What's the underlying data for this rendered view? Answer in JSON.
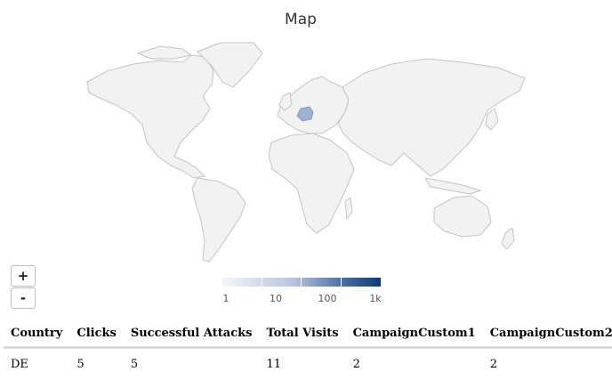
{
  "map": {
    "title": "Map",
    "highlighted_country": "DE",
    "land_color": "#f2f2f2",
    "border_color": "#c4c4c4",
    "highlight_color": "#9fb0d4",
    "zoom_in_label": "+",
    "zoom_out_label": "-"
  },
  "legend": {
    "scale": "log",
    "labels": [
      "1",
      "10",
      "100",
      "1k"
    ],
    "color_low": "#f4f5fb",
    "color_high": "#0e3a78"
  },
  "table": {
    "headers": [
      "Country",
      "Clicks",
      "Successful Attacks",
      "Total Visits",
      "CampaignCustom1",
      "CampaignCustom2"
    ],
    "rows": [
      [
        "DE",
        "5",
        "5",
        "11",
        "2",
        "2"
      ]
    ]
  }
}
